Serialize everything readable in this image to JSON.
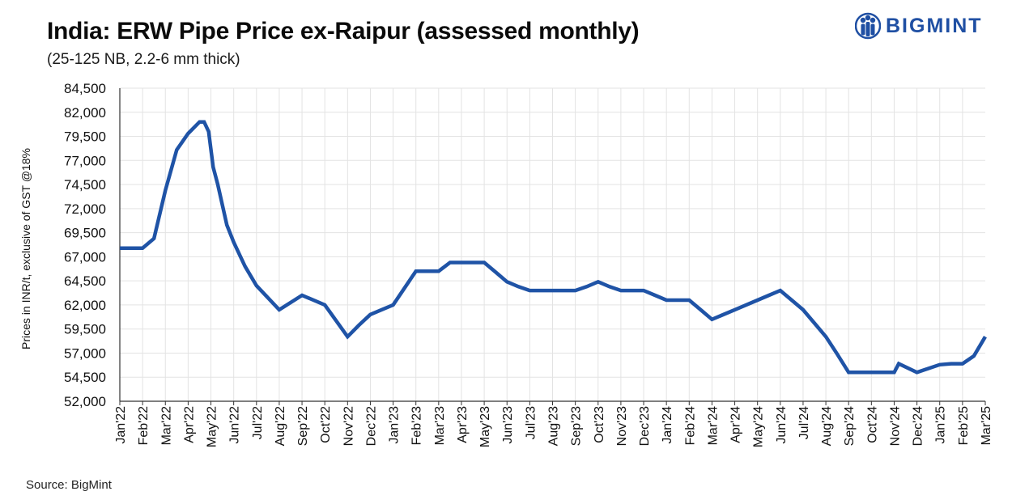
{
  "header": {
    "title": "India: ERW Pipe Price ex-Raipur (assessed monthly)",
    "subtitle": "(25-125 NB, 2.2-6 mm thick)"
  },
  "logo": {
    "text": "BIGMINT",
    "color": "#1f4fa3"
  },
  "footer": {
    "source": "Source: BigMint"
  },
  "colors": {
    "line": "#1f53a6",
    "grid": "#e3e3e3",
    "axis": "#333333"
  },
  "chart_data": {
    "type": "line",
    "title": "India: ERW Pipe Price ex-Raipur (assessed monthly)",
    "subtitle": "(25-125 NB, 2.2-6 mm thick)",
    "xlabel": "",
    "ylabel": "Prices in INR/t, exclusive of GST @18%",
    "ylim": [
      52000,
      84500
    ],
    "yticks": [
      52000,
      54500,
      57000,
      59500,
      62000,
      64500,
      67000,
      69500,
      72000,
      74500,
      77000,
      79500,
      82000,
      84500
    ],
    "ytick_labels": [
      "52,000",
      "54,500",
      "57,000",
      "59,500",
      "62,000",
      "64,500",
      "67,000",
      "69,500",
      "72,000",
      "74,500",
      "77,000",
      "79,500",
      "82,000",
      "84,500"
    ],
    "xlim": [
      0,
      38
    ],
    "xtick_labels": [
      "Jan'22",
      "Feb'22",
      "Mar'22",
      "Apr'22",
      "May'22",
      "Jun'22",
      "Jul'22",
      "Aug'22",
      "Sep'22",
      "Oct'22",
      "Nov'22",
      "Dec'22",
      "Jan'23",
      "Feb'23",
      "Mar'23",
      "Apr'23",
      "May'23",
      "Jun'23",
      "Jul'23",
      "Aug'23",
      "Sep'23",
      "Oct'23",
      "Nov'23",
      "Dec'23",
      "Jan'24",
      "Feb'24",
      "Mar'24",
      "Apr'24",
      "May'24",
      "Jun'24",
      "Jul'24",
      "Aug'24",
      "Sep'24",
      "Oct'24",
      "Nov'24",
      "Dec'24",
      "Jan'25",
      "Feb'25",
      "Mar'25"
    ],
    "grid": true,
    "legend": "none",
    "series": [
      {
        "name": "ERW Pipe Price ex-Raipur",
        "x": [
          0,
          0.5,
          1,
          1.5,
          2,
          2.5,
          3,
          3.5,
          3.7,
          3.9,
          4.1,
          4.3,
          4.7,
          5,
          5.2,
          5.5,
          6,
          7,
          8,
          9,
          10,
          10.5,
          11,
          12,
          13,
          13.5,
          14,
          14.5,
          15,
          15.5,
          16,
          16.5,
          17,
          17.5,
          18,
          18.5,
          19,
          19.5,
          20,
          20.5,
          21,
          21.5,
          22,
          22.5,
          23,
          23.5,
          24,
          24.5,
          25,
          25.5,
          26,
          27,
          28,
          28.5,
          29,
          29.5,
          30,
          30.5,
          31,
          31.5,
          32,
          32.5,
          33,
          33.5,
          34,
          34.2,
          35,
          35.5,
          36,
          36.5,
          37,
          37.5,
          38
        ],
        "values": [
          67900,
          67900,
          67900,
          68900,
          73900,
          78100,
          79800,
          81000,
          81000,
          80000,
          76300,
          74500,
          70300,
          68500,
          67500,
          66000,
          64000,
          61500,
          63000,
          62000,
          58700,
          59900,
          61000,
          62000,
          65500,
          65500,
          65500,
          66400,
          66400,
          66400,
          66400,
          65400,
          64400,
          63900,
          63500,
          63500,
          63500,
          63500,
          63500,
          63900,
          64400,
          63900,
          63500,
          63500,
          63500,
          63000,
          62500,
          62500,
          62500,
          61500,
          60500,
          61500,
          62500,
          63000,
          63500,
          62500,
          61500,
          60100,
          58700,
          56900,
          55000,
          55000,
          55000,
          55000,
          55000,
          55900,
          55000,
          55400,
          55800,
          55900,
          55900,
          56700,
          58700
        ]
      }
    ]
  }
}
